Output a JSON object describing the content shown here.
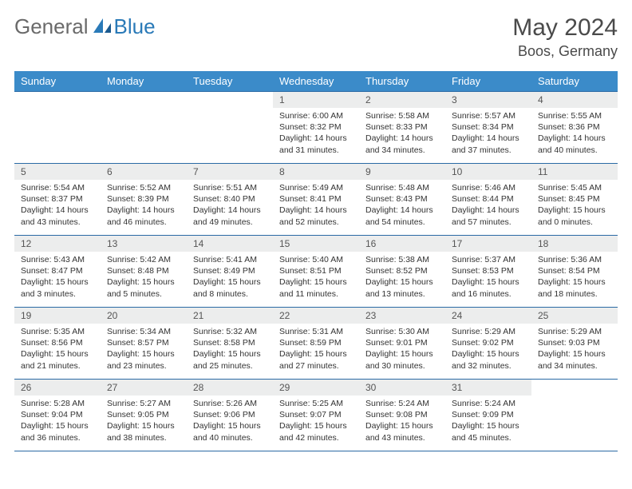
{
  "brand": {
    "part1": "General",
    "part2": "Blue"
  },
  "header": {
    "month_year": "May 2024",
    "location": "Boos, Germany"
  },
  "colors": {
    "header_bg": "#3b8bc9",
    "header_text": "#ffffff",
    "daynum_bg": "#eceded",
    "border": "#2a6aa5",
    "logo_accent": "#2a7ab8"
  },
  "day_headers": [
    "Sunday",
    "Monday",
    "Tuesday",
    "Wednesday",
    "Thursday",
    "Friday",
    "Saturday"
  ],
  "weeks": [
    [
      {
        "n": "",
        "sr": "",
        "ss": "",
        "dl": ""
      },
      {
        "n": "",
        "sr": "",
        "ss": "",
        "dl": ""
      },
      {
        "n": "",
        "sr": "",
        "ss": "",
        "dl": ""
      },
      {
        "n": "1",
        "sr": "6:00 AM",
        "ss": "8:32 PM",
        "dl": "14 hours and 31 minutes."
      },
      {
        "n": "2",
        "sr": "5:58 AM",
        "ss": "8:33 PM",
        "dl": "14 hours and 34 minutes."
      },
      {
        "n": "3",
        "sr": "5:57 AM",
        "ss": "8:34 PM",
        "dl": "14 hours and 37 minutes."
      },
      {
        "n": "4",
        "sr": "5:55 AM",
        "ss": "8:36 PM",
        "dl": "14 hours and 40 minutes."
      }
    ],
    [
      {
        "n": "5",
        "sr": "5:54 AM",
        "ss": "8:37 PM",
        "dl": "14 hours and 43 minutes."
      },
      {
        "n": "6",
        "sr": "5:52 AM",
        "ss": "8:39 PM",
        "dl": "14 hours and 46 minutes."
      },
      {
        "n": "7",
        "sr": "5:51 AM",
        "ss": "8:40 PM",
        "dl": "14 hours and 49 minutes."
      },
      {
        "n": "8",
        "sr": "5:49 AM",
        "ss": "8:41 PM",
        "dl": "14 hours and 52 minutes."
      },
      {
        "n": "9",
        "sr": "5:48 AM",
        "ss": "8:43 PM",
        "dl": "14 hours and 54 minutes."
      },
      {
        "n": "10",
        "sr": "5:46 AM",
        "ss": "8:44 PM",
        "dl": "14 hours and 57 minutes."
      },
      {
        "n": "11",
        "sr": "5:45 AM",
        "ss": "8:45 PM",
        "dl": "15 hours and 0 minutes."
      }
    ],
    [
      {
        "n": "12",
        "sr": "5:43 AM",
        "ss": "8:47 PM",
        "dl": "15 hours and 3 minutes."
      },
      {
        "n": "13",
        "sr": "5:42 AM",
        "ss": "8:48 PM",
        "dl": "15 hours and 5 minutes."
      },
      {
        "n": "14",
        "sr": "5:41 AM",
        "ss": "8:49 PM",
        "dl": "15 hours and 8 minutes."
      },
      {
        "n": "15",
        "sr": "5:40 AM",
        "ss": "8:51 PM",
        "dl": "15 hours and 11 minutes."
      },
      {
        "n": "16",
        "sr": "5:38 AM",
        "ss": "8:52 PM",
        "dl": "15 hours and 13 minutes."
      },
      {
        "n": "17",
        "sr": "5:37 AM",
        "ss": "8:53 PM",
        "dl": "15 hours and 16 minutes."
      },
      {
        "n": "18",
        "sr": "5:36 AM",
        "ss": "8:54 PM",
        "dl": "15 hours and 18 minutes."
      }
    ],
    [
      {
        "n": "19",
        "sr": "5:35 AM",
        "ss": "8:56 PM",
        "dl": "15 hours and 21 minutes."
      },
      {
        "n": "20",
        "sr": "5:34 AM",
        "ss": "8:57 PM",
        "dl": "15 hours and 23 minutes."
      },
      {
        "n": "21",
        "sr": "5:32 AM",
        "ss": "8:58 PM",
        "dl": "15 hours and 25 minutes."
      },
      {
        "n": "22",
        "sr": "5:31 AM",
        "ss": "8:59 PM",
        "dl": "15 hours and 27 minutes."
      },
      {
        "n": "23",
        "sr": "5:30 AM",
        "ss": "9:01 PM",
        "dl": "15 hours and 30 minutes."
      },
      {
        "n": "24",
        "sr": "5:29 AM",
        "ss": "9:02 PM",
        "dl": "15 hours and 32 minutes."
      },
      {
        "n": "25",
        "sr": "5:29 AM",
        "ss": "9:03 PM",
        "dl": "15 hours and 34 minutes."
      }
    ],
    [
      {
        "n": "26",
        "sr": "5:28 AM",
        "ss": "9:04 PM",
        "dl": "15 hours and 36 minutes."
      },
      {
        "n": "27",
        "sr": "5:27 AM",
        "ss": "9:05 PM",
        "dl": "15 hours and 38 minutes."
      },
      {
        "n": "28",
        "sr": "5:26 AM",
        "ss": "9:06 PM",
        "dl": "15 hours and 40 minutes."
      },
      {
        "n": "29",
        "sr": "5:25 AM",
        "ss": "9:07 PM",
        "dl": "15 hours and 42 minutes."
      },
      {
        "n": "30",
        "sr": "5:24 AM",
        "ss": "9:08 PM",
        "dl": "15 hours and 43 minutes."
      },
      {
        "n": "31",
        "sr": "5:24 AM",
        "ss": "9:09 PM",
        "dl": "15 hours and 45 minutes."
      },
      {
        "n": "",
        "sr": "",
        "ss": "",
        "dl": ""
      }
    ]
  ],
  "labels": {
    "sunrise": "Sunrise:",
    "sunset": "Sunset:",
    "daylight": "Daylight:"
  }
}
